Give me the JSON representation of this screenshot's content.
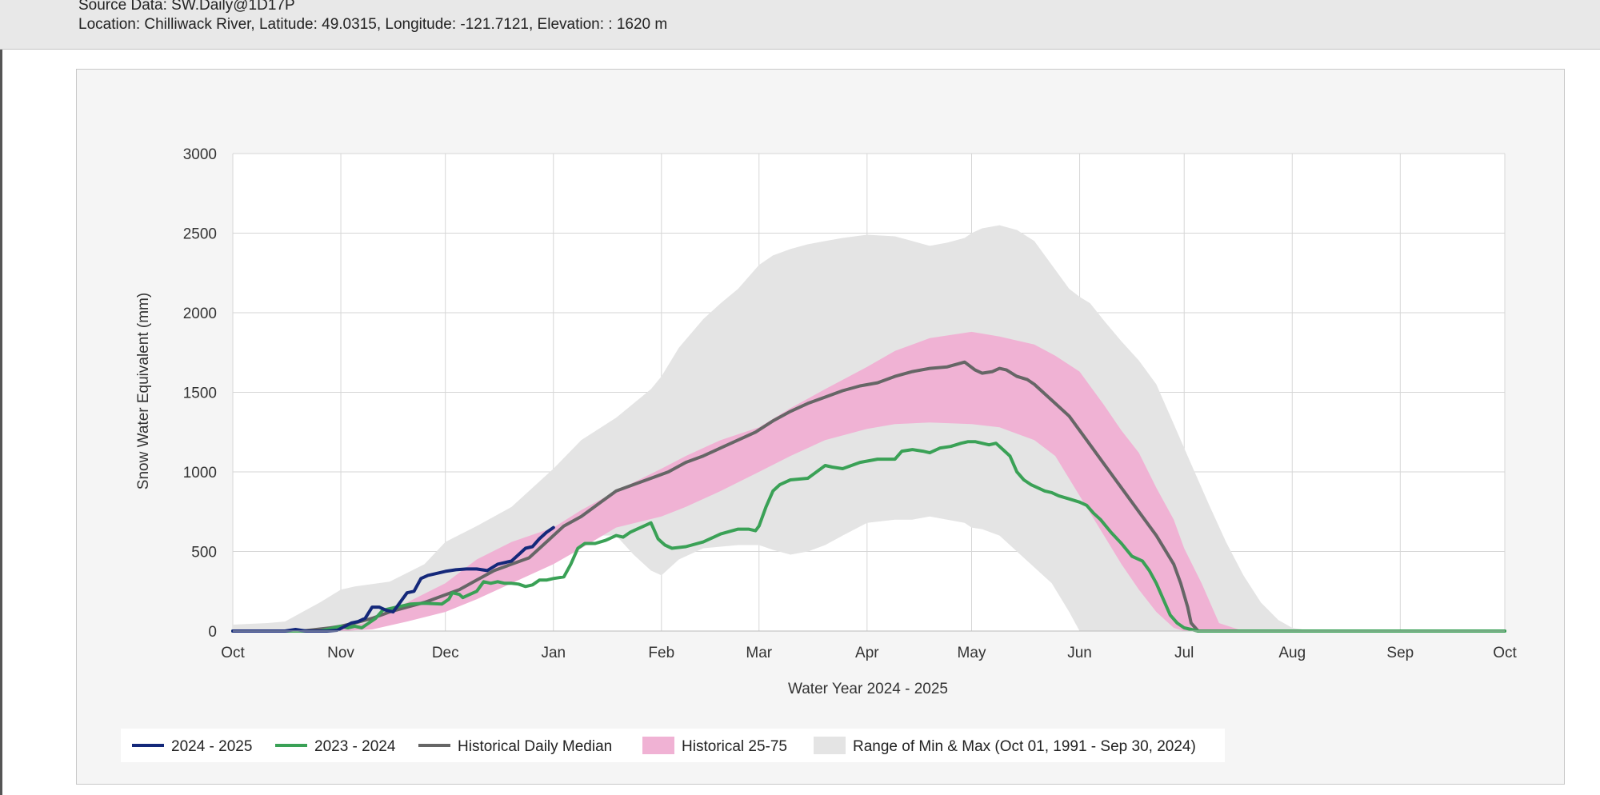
{
  "header": {
    "source_line": "Source Data: SW.Daily@1D17P",
    "location_line": "Location: Chilliwack River, Latitude: 49.0315, Longitude: -121.7121, Elevation: : 1620 m"
  },
  "colors": {
    "series_2024_2025": "#14287a",
    "series_2023_2024": "#3aa156",
    "median": "#666666",
    "band_25_75": "#f0b2d4",
    "band_min_max": "#e4e4e4"
  },
  "chart_data": {
    "type": "line",
    "title": "",
    "xlabel": "Water Year 2024 - 2025",
    "ylabel": "Snow Water Equivalent (mm)",
    "ylim": [
      0,
      3000
    ],
    "yticks": [
      0,
      500,
      1000,
      1500,
      2000,
      2500,
      3000
    ],
    "x_unit": "days since Oct 1",
    "xlim": [
      0,
      365
    ],
    "month_ticks": [
      {
        "label": "Oct",
        "day": 0
      },
      {
        "label": "Nov",
        "day": 31
      },
      {
        "label": "Dec",
        "day": 61
      },
      {
        "label": "Jan",
        "day": 92
      },
      {
        "label": "Feb",
        "day": 123
      },
      {
        "label": "Mar",
        "day": 151
      },
      {
        "label": "Apr",
        "day": 182
      },
      {
        "label": "May",
        "day": 212
      },
      {
        "label": "Jun",
        "day": 243
      },
      {
        "label": "Jul",
        "day": 273
      },
      {
        "label": "Aug",
        "day": 304
      },
      {
        "label": "Sep",
        "day": 335
      },
      {
        "label": "Oct",
        "day": 365
      }
    ],
    "grid": true,
    "legend_position": "bottom-left",
    "series": [
      {
        "name": "2024 - 2025",
        "kind": "line",
        "x": [
          0,
          5,
          10,
          15,
          18,
          21,
          24,
          27,
          30,
          34,
          36,
          38,
          40,
          42,
          44,
          46,
          48,
          50,
          52,
          54,
          56,
          58,
          61,
          64,
          67,
          70,
          73,
          76,
          78,
          80,
          82,
          84,
          86,
          88,
          90,
          92
        ],
        "y": [
          0,
          0,
          0,
          0,
          10,
          0,
          0,
          0,
          5,
          50,
          60,
          80,
          150,
          150,
          130,
          120,
          180,
          240,
          250,
          330,
          350,
          360,
          375,
          385,
          390,
          390,
          380,
          420,
          430,
          440,
          480,
          520,
          530,
          580,
          620,
          650
        ]
      },
      {
        "name": "2023 - 2024",
        "kind": "line",
        "x": [
          0,
          10,
          20,
          25,
          29,
          31,
          33,
          35,
          37,
          39,
          41,
          43,
          45,
          47,
          49,
          51,
          55,
          60,
          62,
          63,
          65,
          66,
          68,
          70,
          72,
          74,
          76,
          78,
          80,
          82,
          84,
          86,
          88,
          90,
          92,
          95,
          97,
          99,
          101,
          104,
          107,
          110,
          112,
          114,
          116,
          118,
          120,
          121,
          122,
          123,
          124,
          126,
          130,
          135,
          140,
          145,
          148,
          150,
          151,
          153,
          155,
          157,
          160,
          165,
          170,
          172,
          175,
          180,
          185,
          190,
          192,
          195,
          198,
          200,
          203,
          206,
          209,
          211,
          213,
          215,
          217,
          219,
          221,
          223,
          225,
          227,
          229,
          231,
          233,
          235,
          237,
          240,
          243,
          245,
          247,
          249,
          252,
          255,
          258,
          261,
          263,
          265,
          267,
          269,
          271,
          273,
          277,
          282,
          290,
          300,
          365
        ],
        "y": [
          0,
          0,
          0,
          0,
          20,
          30,
          20,
          30,
          20,
          50,
          80,
          130,
          140,
          150,
          160,
          170,
          175,
          170,
          200,
          240,
          230,
          210,
          230,
          250,
          310,
          300,
          310,
          300,
          300,
          295,
          280,
          290,
          320,
          320,
          330,
          340,
          420,
          520,
          550,
          550,
          570,
          600,
          590,
          620,
          640,
          660,
          680,
          630,
          580,
          560,
          540,
          520,
          530,
          560,
          610,
          640,
          640,
          630,
          660,
          780,
          880,
          920,
          950,
          960,
          1040,
          1030,
          1020,
          1060,
          1080,
          1080,
          1130,
          1140,
          1130,
          1120,
          1150,
          1160,
          1180,
          1190,
          1190,
          1180,
          1170,
          1180,
          1140,
          1100,
          1000,
          950,
          920,
          900,
          880,
          870,
          850,
          830,
          810,
          790,
          740,
          700,
          620,
          550,
          470,
          440,
          380,
          300,
          200,
          100,
          50,
          20,
          0,
          0,
          0,
          0,
          0
        ]
      },
      {
        "name": "Historical Daily Median",
        "kind": "line",
        "x": [
          0,
          10,
          20,
          28,
          31,
          35,
          40,
          45,
          50,
          55,
          60,
          65,
          70,
          75,
          80,
          85,
          90,
          95,
          100,
          105,
          110,
          115,
          120,
          125,
          130,
          135,
          140,
          145,
          150,
          155,
          160,
          165,
          170,
          175,
          180,
          185,
          190,
          195,
          200,
          205,
          210,
          213,
          215,
          218,
          220,
          222,
          225,
          228,
          230,
          235,
          240,
          245,
          250,
          255,
          260,
          265,
          270,
          272,
          274,
          275,
          277,
          282,
          290,
          300,
          365
        ],
        "y": [
          0,
          0,
          0,
          20,
          30,
          50,
          80,
          120,
          150,
          180,
          220,
          260,
          320,
          380,
          420,
          460,
          560,
          660,
          720,
          800,
          880,
          920,
          960,
          1000,
          1060,
          1100,
          1150,
          1200,
          1250,
          1320,
          1380,
          1430,
          1470,
          1510,
          1540,
          1560,
          1600,
          1630,
          1650,
          1660,
          1690,
          1640,
          1620,
          1630,
          1650,
          1640,
          1600,
          1580,
          1550,
          1450,
          1350,
          1200,
          1050,
          900,
          750,
          600,
          420,
          300,
          150,
          50,
          0,
          0,
          0,
          0,
          0
        ]
      },
      {
        "name": "Historical 25-75",
        "kind": "band",
        "x": [
          0,
          15,
          25,
          31,
          40,
          50,
          61,
          70,
          80,
          92,
          100,
          110,
          123,
          130,
          140,
          151,
          160,
          170,
          182,
          190,
          200,
          212,
          220,
          230,
          236,
          243,
          250,
          255,
          260,
          265,
          270,
          273,
          278,
          283,
          290,
          300,
          365
        ],
        "y_low": [
          0,
          0,
          0,
          0,
          10,
          60,
          120,
          200,
          300,
          420,
          520,
          650,
          720,
          780,
          880,
          1000,
          1100,
          1200,
          1270,
          1300,
          1310,
          1300,
          1280,
          1200,
          1100,
          850,
          600,
          420,
          260,
          120,
          20,
          0,
          0,
          0,
          0,
          0,
          0
        ],
        "y_high": [
          0,
          0,
          0,
          20,
          60,
          180,
          300,
          450,
          560,
          650,
          760,
          880,
          1020,
          1100,
          1200,
          1280,
          1400,
          1520,
          1660,
          1760,
          1840,
          1880,
          1850,
          1800,
          1730,
          1630,
          1420,
          1260,
          1120,
          900,
          700,
          520,
          300,
          50,
          0,
          0,
          0
        ]
      },
      {
        "name": "Range of Min & Max (Oct 01, 1991 - Sep 30, 2024)",
        "kind": "band",
        "x": [
          0,
          10,
          15,
          25,
          31,
          35,
          45,
          55,
          61,
          70,
          80,
          92,
          100,
          110,
          115,
          120,
          123,
          128,
          135,
          140,
          145,
          151,
          155,
          160,
          165,
          170,
          175,
          182,
          190,
          195,
          200,
          205,
          210,
          212,
          215,
          220,
          225,
          230,
          235,
          240,
          243,
          246,
          250,
          255,
          260,
          265,
          270,
          275,
          280,
          285,
          290,
          295,
          300,
          304,
          310,
          365
        ],
        "y_low": [
          0,
          0,
          0,
          0,
          0,
          10,
          50,
          150,
          250,
          380,
          480,
          560,
          600,
          600,
          480,
          380,
          350,
          450,
          520,
          530,
          540,
          540,
          510,
          480,
          500,
          540,
          600,
          680,
          700,
          700,
          720,
          700,
          680,
          650,
          640,
          600,
          500,
          400,
          300,
          120,
          0,
          0,
          0,
          0,
          0,
          0,
          0,
          0,
          0,
          0,
          0,
          0,
          0,
          0,
          0,
          0
        ],
        "y_high": [
          40,
          50,
          60,
          180,
          260,
          280,
          310,
          420,
          560,
          660,
          780,
          1020,
          1200,
          1340,
          1430,
          1520,
          1600,
          1780,
          1960,
          2060,
          2150,
          2300,
          2360,
          2400,
          2430,
          2450,
          2470,
          2490,
          2480,
          2450,
          2420,
          2440,
          2470,
          2500,
          2530,
          2550,
          2520,
          2450,
          2300,
          2150,
          2100,
          2060,
          1950,
          1820,
          1700,
          1550,
          1300,
          1050,
          800,
          560,
          350,
          180,
          70,
          20,
          0,
          0
        ]
      }
    ]
  }
}
